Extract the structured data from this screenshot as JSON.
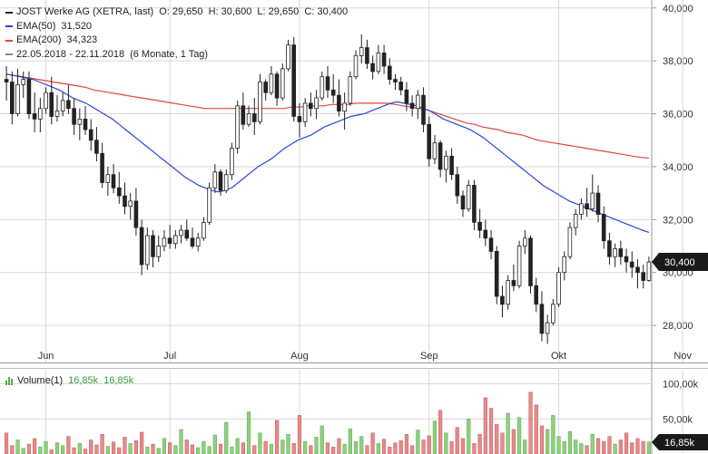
{
  "legend": {
    "title": "JOST Werke AG (XETRA, last)",
    "ohlc": "O: 29,650  H: 30,600  L: 29,650  C: 30,400",
    "ema50_label": "EMA(50)",
    "ema50_value": "31,520",
    "ema200_label": "EMA(200)",
    "ema200_value": "34,323",
    "range": "22.05.2018 - 22.11.2018",
    "period": "(6 Monate, 1 Tag)"
  },
  "volume_legend": {
    "label": "Volume(1)",
    "value1": "16,85k",
    "value2": "16,85k"
  },
  "colors": {
    "ema50": "#2b46d8",
    "ema200": "#e0483c",
    "up": "#ffffff",
    "down": "#222222",
    "vol_up": "#8fcf7f",
    "vol_down": "#e58a8a",
    "grid": "#d8d8d8",
    "badge": "#1a1a1a"
  },
  "chart_data": {
    "type": "candlestick",
    "title": "JOST Werke AG (XETRA, last)",
    "y_range": [
      26.6,
      40.3
    ],
    "y_ticks": [
      28,
      30,
      32,
      34,
      36,
      38,
      40
    ],
    "y_tick_labels": [
      "28,000",
      "30,000",
      "32,000",
      "34,000",
      "36,000",
      "38,000",
      "40,000"
    ],
    "x_labels": [
      "Jun",
      "Jul",
      "Aug",
      "Sep",
      "Okt",
      "Nov"
    ],
    "x_label_index": [
      7,
      29,
      52,
      75,
      98,
      120
    ],
    "last_price_label": "30,400",
    "last_price": 30.4,
    "candles": [
      [
        37.3,
        37.8,
        36.5,
        37.2
      ],
      [
        37.2,
        37.6,
        35.6,
        36.0
      ],
      [
        36.0,
        37.7,
        35.9,
        37.1
      ],
      [
        37.1,
        37.6,
        36.6,
        37.3
      ],
      [
        37.3,
        37.6,
        35.8,
        36.0
      ],
      [
        36.0,
        36.8,
        35.3,
        35.8
      ],
      [
        35.8,
        36.6,
        35.3,
        36.2
      ],
      [
        36.2,
        37.0,
        36.0,
        36.8
      ],
      [
        36.8,
        37.4,
        35.6,
        35.9
      ],
      [
        35.9,
        36.7,
        35.7,
        36.1
      ],
      [
        36.1,
        36.8,
        35.9,
        36.5
      ],
      [
        36.5,
        37.1,
        36.0,
        36.2
      ],
      [
        36.2,
        36.6,
        35.2,
        35.6
      ],
      [
        35.6,
        36.2,
        35.0,
        35.8
      ],
      [
        35.8,
        36.3,
        35.2,
        35.4
      ],
      [
        35.4,
        35.8,
        34.6,
        35.0
      ],
      [
        35.0,
        35.5,
        34.2,
        34.5
      ],
      [
        34.5,
        34.9,
        33.2,
        33.4
      ],
      [
        33.4,
        34.0,
        32.9,
        33.7
      ],
      [
        33.7,
        34.1,
        33.0,
        33.2
      ],
      [
        33.2,
        33.8,
        32.6,
        32.9
      ],
      [
        32.9,
        33.4,
        32.2,
        32.5
      ],
      [
        32.5,
        33.0,
        32.0,
        32.7
      ],
      [
        32.7,
        33.2,
        31.4,
        31.7
      ],
      [
        31.7,
        32.0,
        29.9,
        30.3
      ],
      [
        30.3,
        31.7,
        30.1,
        31.4
      ],
      [
        31.4,
        31.6,
        30.2,
        30.6
      ],
      [
        30.6,
        31.4,
        30.4,
        31.0
      ],
      [
        31.0,
        31.6,
        30.8,
        31.3
      ],
      [
        31.3,
        31.8,
        30.9,
        31.1
      ],
      [
        31.1,
        31.6,
        30.9,
        31.4
      ],
      [
        31.4,
        31.8,
        31.1,
        31.6
      ],
      [
        31.6,
        32.0,
        31.2,
        31.3
      ],
      [
        31.3,
        31.7,
        30.9,
        31.0
      ],
      [
        31.0,
        31.5,
        30.8,
        31.3
      ],
      [
        31.3,
        32.1,
        31.2,
        31.9
      ],
      [
        31.9,
        33.4,
        31.8,
        33.2
      ],
      [
        33.2,
        34.1,
        33.0,
        33.8
      ],
      [
        33.8,
        33.9,
        32.9,
        33.1
      ],
      [
        33.1,
        33.9,
        33.0,
        33.7
      ],
      [
        33.7,
        34.9,
        33.5,
        34.7
      ],
      [
        34.7,
        36.5,
        34.5,
        36.3
      ],
      [
        36.3,
        36.8,
        35.4,
        35.6
      ],
      [
        35.6,
        36.3,
        35.5,
        36.0
      ],
      [
        36.0,
        36.6,
        35.2,
        35.7
      ],
      [
        35.7,
        37.5,
        35.6,
        37.2
      ],
      [
        37.2,
        37.3,
        36.5,
        36.8
      ],
      [
        36.8,
        37.8,
        36.7,
        37.5
      ],
      [
        37.5,
        37.6,
        36.3,
        36.6
      ],
      [
        36.6,
        37.9,
        36.5,
        37.7
      ],
      [
        37.7,
        38.8,
        37.6,
        38.6
      ],
      [
        38.6,
        38.9,
        35.7,
        35.9
      ],
      [
        35.9,
        36.4,
        35.1,
        35.7
      ],
      [
        35.7,
        36.6,
        35.5,
        36.4
      ],
      [
        36.4,
        36.8,
        35.9,
        36.2
      ],
      [
        36.2,
        36.9,
        35.8,
        36.6
      ],
      [
        36.6,
        37.6,
        36.5,
        37.4
      ],
      [
        37.4,
        37.8,
        36.6,
        36.9
      ],
      [
        36.9,
        37.5,
        36.4,
        36.7
      ],
      [
        36.7,
        37.3,
        35.9,
        36.1
      ],
      [
        36.1,
        36.8,
        35.4,
        36.4
      ],
      [
        36.4,
        37.6,
        36.3,
        37.4
      ],
      [
        37.4,
        38.4,
        37.3,
        38.2
      ],
      [
        38.2,
        39.0,
        37.9,
        38.5
      ],
      [
        38.5,
        38.8,
        37.7,
        37.9
      ],
      [
        37.9,
        38.2,
        37.3,
        37.6
      ],
      [
        37.6,
        38.6,
        37.5,
        38.3
      ],
      [
        38.3,
        38.6,
        37.5,
        37.8
      ],
      [
        37.8,
        38.1,
        37.1,
        37.3
      ],
      [
        37.3,
        37.5,
        36.9,
        37.2
      ],
      [
        37.2,
        37.4,
        36.7,
        36.9
      ],
      [
        36.9,
        37.2,
        36.1,
        36.4
      ],
      [
        36.4,
        36.7,
        35.9,
        36.2
      ],
      [
        36.2,
        36.9,
        35.8,
        36.7
      ],
      [
        36.7,
        37.0,
        35.3,
        35.6
      ],
      [
        35.6,
        35.9,
        34.0,
        34.3
      ],
      [
        34.3,
        35.2,
        34.1,
        34.9
      ],
      [
        34.9,
        35.0,
        33.6,
        33.9
      ],
      [
        33.9,
        34.6,
        33.4,
        34.4
      ],
      [
        34.4,
        34.7,
        33.5,
        33.7
      ],
      [
        33.7,
        34.0,
        32.6,
        32.9
      ],
      [
        32.9,
        33.1,
        32.1,
        32.4
      ],
      [
        32.4,
        33.5,
        32.3,
        33.3
      ],
      [
        33.3,
        33.5,
        31.6,
        31.9
      ],
      [
        31.9,
        32.4,
        31.3,
        31.6
      ],
      [
        31.6,
        32.0,
        31.0,
        31.3
      ],
      [
        31.3,
        31.6,
        30.5,
        30.8
      ],
      [
        30.8,
        31.0,
        28.8,
        29.1
      ],
      [
        29.1,
        29.5,
        28.3,
        28.8
      ],
      [
        28.8,
        29.9,
        28.6,
        29.7
      ],
      [
        29.7,
        30.3,
        29.3,
        29.5
      ],
      [
        29.5,
        31.2,
        29.4,
        31.0
      ],
      [
        31.0,
        31.6,
        30.7,
        31.3
      ],
      [
        31.3,
        31.4,
        29.2,
        29.5
      ],
      [
        29.5,
        29.8,
        28.5,
        28.8
      ],
      [
        28.8,
        29.3,
        27.4,
        27.7
      ],
      [
        27.7,
        28.4,
        27.3,
        28.1
      ],
      [
        28.1,
        29.0,
        28.0,
        28.8
      ],
      [
        28.8,
        30.2,
        28.7,
        30.0
      ],
      [
        30.0,
        30.8,
        29.7,
        30.6
      ],
      [
        30.6,
        31.9,
        30.5,
        31.7
      ],
      [
        31.7,
        32.4,
        31.4,
        32.2
      ],
      [
        32.2,
        32.8,
        32.0,
        32.6
      ],
      [
        32.6,
        33.2,
        32.1,
        32.4
      ],
      [
        32.4,
        33.7,
        32.3,
        33.0
      ],
      [
        33.0,
        33.3,
        31.9,
        32.2
      ],
      [
        32.2,
        32.5,
        30.9,
        31.2
      ],
      [
        31.2,
        31.5,
        30.3,
        30.6
      ],
      [
        30.6,
        31.1,
        30.2,
        30.9
      ],
      [
        30.9,
        31.2,
        30.3,
        30.6
      ],
      [
        30.6,
        30.9,
        30.0,
        30.4
      ],
      [
        30.4,
        30.8,
        29.8,
        30.2
      ],
      [
        30.2,
        30.5,
        29.4,
        30.0
      ],
      [
        30.0,
        30.3,
        29.4,
        29.7
      ],
      [
        29.7,
        30.6,
        29.65,
        30.4
      ]
    ],
    "ema50": [
      37.5,
      37.45,
      37.4,
      37.35,
      37.3,
      37.2,
      37.1,
      37.0,
      36.9,
      36.75,
      36.6,
      36.5,
      36.4,
      36.25,
      36.1,
      35.95,
      35.8,
      35.6,
      35.4,
      35.2,
      35.0,
      34.8,
      34.6,
      34.4,
      34.2,
      34.0,
      33.8,
      33.6,
      33.45,
      33.3,
      33.2,
      33.1,
      33.05,
      33.1,
      33.2,
      33.4,
      33.6,
      33.8,
      34.0,
      34.15,
      34.3,
      34.5,
      34.7,
      34.85,
      35.0,
      35.1,
      35.2,
      35.35,
      35.5,
      35.6,
      35.7,
      35.8,
      35.9,
      35.95,
      36.0,
      36.1,
      36.2,
      36.3,
      36.4,
      36.45,
      36.4,
      36.35,
      36.3,
      36.2,
      36.1,
      35.95,
      35.8,
      35.7,
      35.6,
      35.5,
      35.4,
      35.25,
      35.1,
      34.9,
      34.7,
      34.5,
      34.3,
      34.1,
      33.9,
      33.7,
      33.5,
      33.3,
      33.15,
      33.0,
      32.85,
      32.7,
      32.6,
      32.5,
      32.4,
      32.3,
      32.2,
      32.1,
      32.0,
      31.9,
      31.8,
      31.7,
      31.6,
      31.52
    ],
    "ema200": [
      37.5,
      37.45,
      37.4,
      37.35,
      37.3,
      37.25,
      37.2,
      37.15,
      37.1,
      37.05,
      37.0,
      36.9,
      36.85,
      36.8,
      36.75,
      36.7,
      36.65,
      36.6,
      36.55,
      36.5,
      36.45,
      36.4,
      36.35,
      36.3,
      36.25,
      36.2,
      36.2,
      36.2,
      36.2,
      36.2,
      36.2,
      36.2,
      36.2,
      36.2,
      36.2,
      36.2,
      36.25,
      36.25,
      36.3,
      36.3,
      36.3,
      36.35,
      36.35,
      36.35,
      36.4,
      36.4,
      36.4,
      36.4,
      36.4,
      36.35,
      36.3,
      36.25,
      36.2,
      36.15,
      36.05,
      35.95,
      35.85,
      35.75,
      35.65,
      35.6,
      35.5,
      35.45,
      35.4,
      35.3,
      35.25,
      35.2,
      35.1,
      35.0,
      34.95,
      34.9,
      34.85,
      34.8,
      34.75,
      34.7,
      34.65,
      34.6,
      34.55,
      34.5,
      34.45,
      34.4,
      34.35,
      34.323
    ],
    "volume_max": 120,
    "volume_ticks": [
      50,
      100
    ],
    "volume_tick_labels": [
      "50,00k",
      "100,00k"
    ],
    "volume_last_label": "16,85k",
    "volume": [
      30,
      12,
      20,
      8,
      14,
      22,
      10,
      18,
      6,
      16,
      12,
      25,
      9,
      15,
      7,
      20,
      13,
      28,
      11,
      17,
      9,
      24,
      15,
      19,
      31,
      10,
      14,
      8,
      22,
      16,
      12,
      35,
      20,
      13,
      9,
      18,
      11,
      27,
      14,
      45,
      10,
      22,
      16,
      60,
      12,
      30,
      18,
      14,
      48,
      20,
      28,
      15,
      55,
      18,
      12,
      24,
      40,
      16,
      10,
      22,
      14,
      36,
      18,
      25,
      12,
      30,
      15,
      21,
      10,
      16,
      19,
      28,
      12,
      34,
      20,
      26,
      47,
      62,
      30,
      18,
      38,
      22,
      50,
      15,
      28,
      80,
      65,
      42,
      30,
      58,
      35,
      52,
      20,
      88,
      70,
      40,
      35,
      55,
      25,
      18,
      32,
      20,
      15,
      12,
      28,
      22,
      18,
      25,
      14,
      20,
      30,
      16,
      22,
      18,
      17
    ]
  }
}
